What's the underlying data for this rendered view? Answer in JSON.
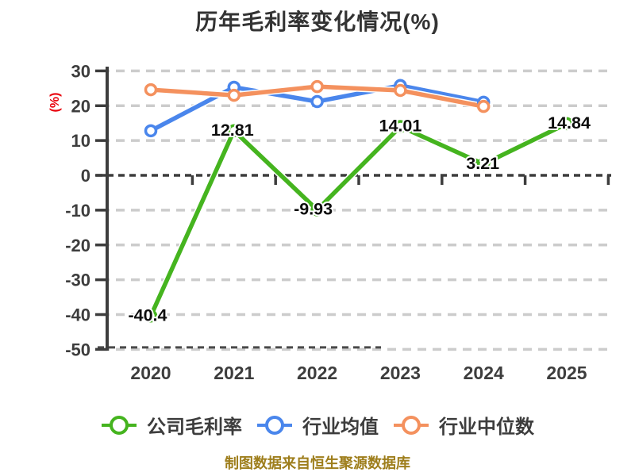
{
  "chart_data": {
    "type": "line",
    "title": "历年毛利率变化情况(%)",
    "ylabel": "(%)",
    "footnote": "制图数据来自恒生聚源数据库",
    "categories": [
      "2020",
      "2021",
      "2022",
      "2023",
      "2024",
      "2025"
    ],
    "series": [
      {
        "name": "公司毛利率",
        "color": "#45b41f",
        "values": [
          -40.4,
          12.81,
          -9.93,
          14.01,
          3.21,
          14.84
        ],
        "point_labels": [
          "-40.4",
          "12.81",
          "-9.93",
          "14.01",
          "3.21",
          "14.84"
        ]
      },
      {
        "name": "行业均值",
        "color": "#4a86ec",
        "values": [
          12.8,
          25.3,
          21.2,
          25.8,
          21.0,
          null
        ]
      },
      {
        "name": "行业中位数",
        "color": "#f4915e",
        "values": [
          24.6,
          23.0,
          25.5,
          24.4,
          19.8,
          null
        ]
      }
    ],
    "yticks": [
      30,
      20,
      10,
      0,
      -10,
      -20,
      -30,
      -40,
      -50
    ],
    "ylim": [
      -50,
      30
    ],
    "grid": "horizontal-dashed",
    "legend_position": "bottom",
    "marker": "open-circle",
    "colors": {
      "grid": "#cccccc",
      "axis": "#3d3d3d",
      "tick_text": "#3d3d3d",
      "point_label_text": "#0d0d0d",
      "ylabel_red": "#e8000b",
      "footnote": "#9e7e1c",
      "title": "#333333"
    }
  }
}
